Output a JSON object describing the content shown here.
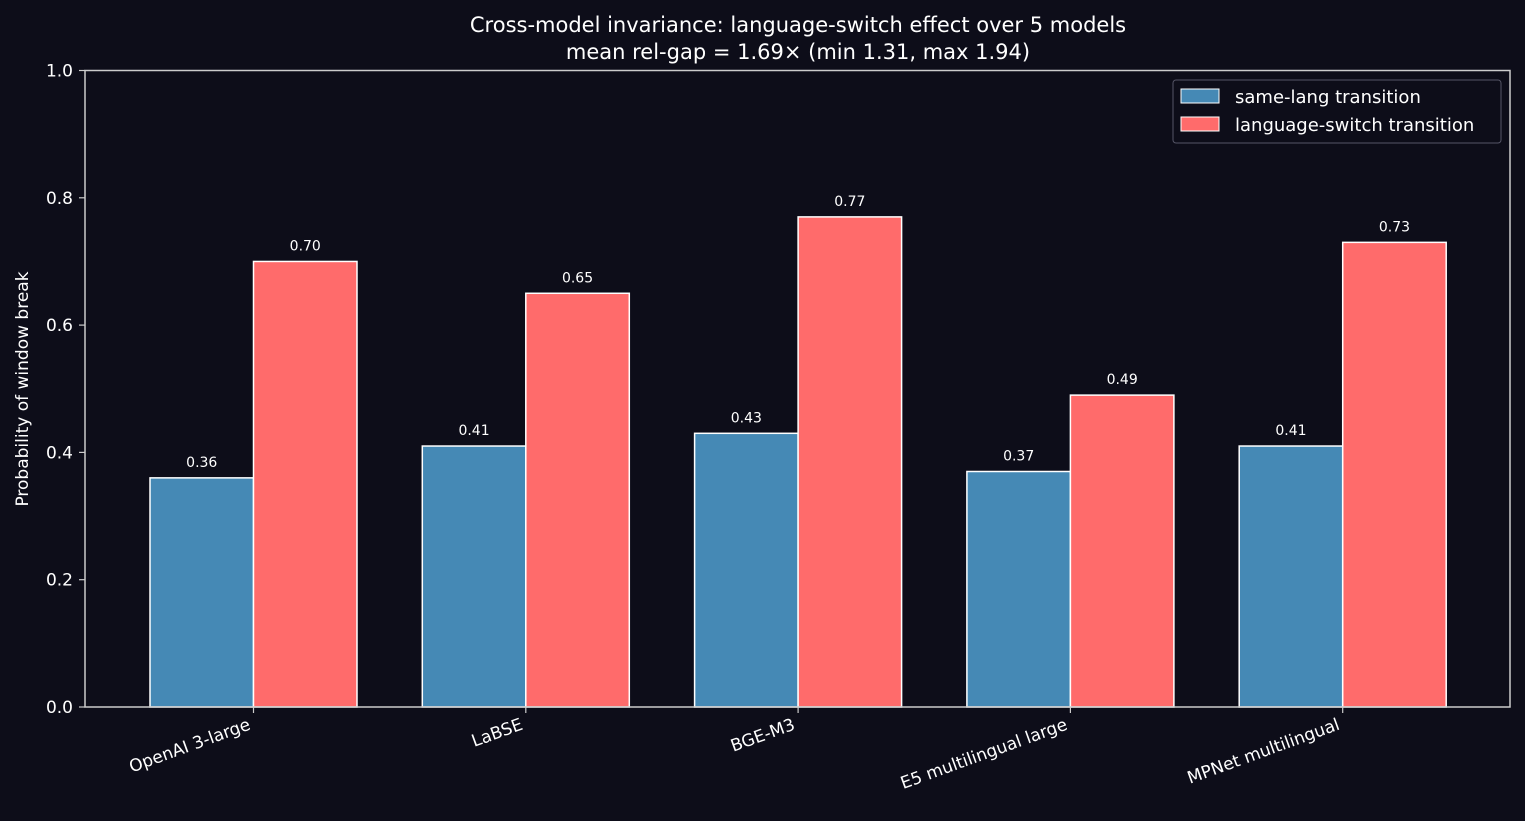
{
  "chart_data": {
    "type": "bar",
    "title": "Cross-model invariance: language-switch effect over 5 models",
    "subtitle": "mean rel-gap = 1.69× (min 1.31, max 1.94)",
    "xlabel": "",
    "ylabel": "Probability of window break",
    "ylim": [
      0,
      1.0
    ],
    "yticks": [
      "0.0",
      "0.2",
      "0.4",
      "0.6",
      "0.8",
      "1.0"
    ],
    "categories": [
      "OpenAI 3-large",
      "LaBSE",
      "BGE-M3",
      "E5 multilingual large",
      "MPNet multilingual"
    ],
    "series": [
      {
        "name": "same-lang transition",
        "color": "#4589b5",
        "values": [
          0.36,
          0.41,
          0.43,
          0.37,
          0.41
        ],
        "labels": [
          "0.36",
          "0.41",
          "0.43",
          "0.37",
          "0.41"
        ]
      },
      {
        "name": "language-switch transition",
        "color": "#ff6b6b",
        "values": [
          0.7,
          0.65,
          0.77,
          0.49,
          0.73
        ],
        "labels": [
          "0.70",
          "0.65",
          "0.77",
          "0.49",
          "0.73"
        ]
      }
    ],
    "legend_position": "top-right",
    "grid": false,
    "background": "#0d0d19",
    "axis_color": "#cccccc"
  }
}
